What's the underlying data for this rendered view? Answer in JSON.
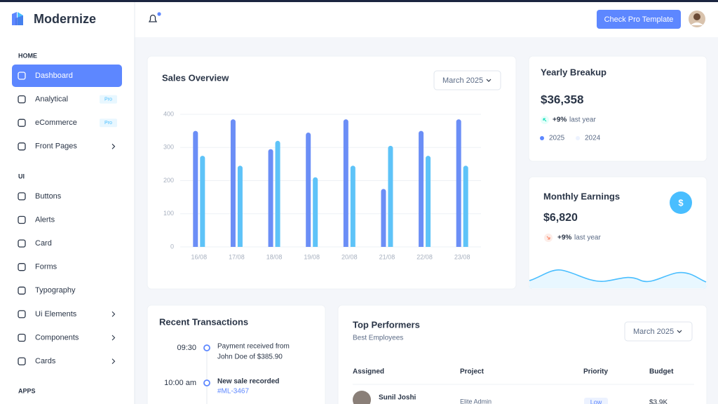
{
  "brand": "Modernize",
  "sidebar": {
    "sections": [
      {
        "title": "HOME",
        "items": [
          {
            "label": "Dashboard",
            "active": true
          },
          {
            "label": "Analytical",
            "badge": "Pro"
          },
          {
            "label": "eCommerce",
            "badge": "Pro"
          },
          {
            "label": "Front Pages",
            "submenu": true
          }
        ]
      },
      {
        "title": "UI",
        "items": [
          {
            "label": "Buttons"
          },
          {
            "label": "Alerts"
          },
          {
            "label": "Card"
          },
          {
            "label": "Forms"
          },
          {
            "label": "Typography"
          },
          {
            "label": "Ui Elements",
            "submenu": true
          },
          {
            "label": "Components",
            "submenu": true
          },
          {
            "label": "Cards",
            "submenu": true
          }
        ]
      },
      {
        "title": "APPS",
        "items": []
      }
    ]
  },
  "header": {
    "button": "Check Pro Template"
  },
  "sales_overview": {
    "title": "Sales Overview",
    "filter": "March 2025",
    "chart": {
      "type": "bar",
      "categories": [
        "16/08",
        "17/08",
        "18/08",
        "19/08",
        "20/08",
        "21/08",
        "22/08",
        "23/08"
      ],
      "series": [
        {
          "color": "#6b8ef6",
          "values": [
            350,
            385,
            295,
            345,
            385,
            175,
            350,
            385
          ]
        },
        {
          "color": "#5ec3f8",
          "values": [
            275,
            245,
            320,
            210,
            245,
            305,
            275,
            245
          ]
        }
      ],
      "ylim": [
        0,
        400
      ],
      "yticks": [
        0,
        100,
        200,
        300,
        400
      ],
      "grid": true
    }
  },
  "yearly_breakup": {
    "title": "Yearly Breakup",
    "amount": "$36,358",
    "change": "+9%",
    "change_label": "last year",
    "legend": [
      {
        "label": "2025",
        "color": "#5d87ff"
      },
      {
        "label": "2024",
        "color": "#ecf2ff"
      }
    ]
  },
  "monthly_earnings": {
    "title": "Monthly Earnings",
    "icon": "$",
    "amount": "$6,820",
    "change": "+9%",
    "change_label": "last year"
  },
  "recent_transactions": {
    "title": "Recent Transactions",
    "items": [
      {
        "time": "09:30",
        "text": [
          "Payment received from",
          "John Doe of $385.90"
        ]
      },
      {
        "time": "10:00 am",
        "text": [
          "New sale recorded"
        ],
        "link": "#ML-3467"
      }
    ]
  },
  "top_performers": {
    "title": "Top Performers",
    "subtitle": "Best Employees",
    "filter": "March 2025",
    "columns": [
      "Assigned",
      "Project",
      "Priority",
      "Budget"
    ],
    "rows": [
      {
        "name": "Sunil Joshi",
        "project": "Elite Admin",
        "priority": "Low",
        "budget": "$3.9K"
      }
    ]
  }
}
